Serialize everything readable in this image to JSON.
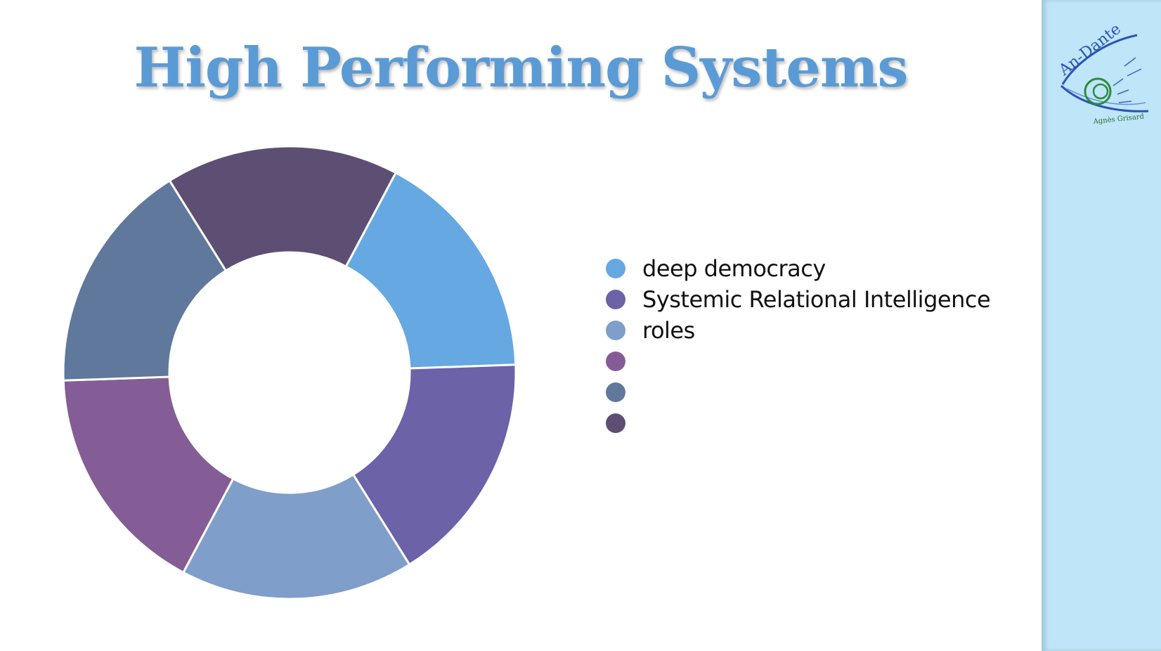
{
  "title": "High Performing Systems",
  "logo": {
    "icon": "an-dante-logo",
    "wordmark": "An-Dante",
    "caption": "Agnès Grisard"
  },
  "colors": {
    "title": "#5b9bd5",
    "sidebar": "#bee5f8"
  },
  "chart_data": {
    "type": "pie",
    "donut": true,
    "categories": [
      "deep democracy",
      "Systemic Relational Intelligence",
      "roles",
      "",
      "",
      ""
    ],
    "values": [
      1,
      1,
      1,
      1,
      1,
      1
    ],
    "colors": [
      "#66a8e2",
      "#6b62a8",
      "#7f9ec9",
      "#845d96",
      "#5f789b",
      "#5d4f74"
    ],
    "legend": "right"
  }
}
